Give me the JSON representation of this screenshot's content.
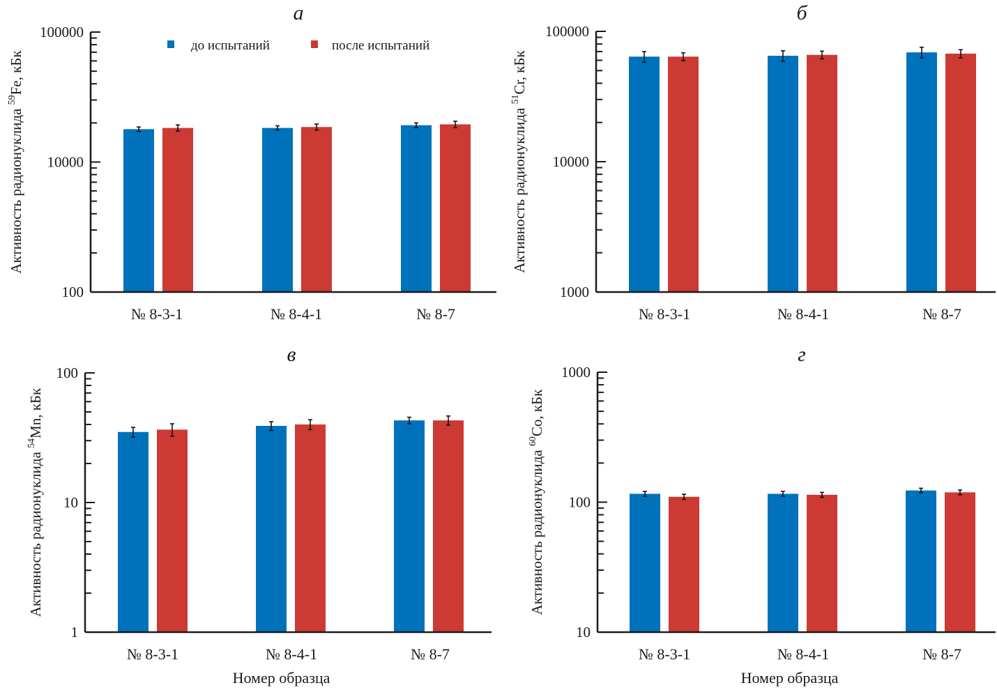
{
  "legend": {
    "items": [
      {
        "label": "до испытаний",
        "color": "#0072BC"
      },
      {
        "label": "после испытаний",
        "color": "#CC3A33"
      }
    ]
  },
  "colors": {
    "before": "#0072BC",
    "after": "#CC3A33",
    "axis": "#1a1a1a"
  },
  "chart_data": [
    {
      "id": "a",
      "type": "bar",
      "title": "а",
      "scale": "log",
      "ylabel_prefix": "Активность радионуклида ",
      "isotope_mass": "59",
      "isotope_symbol": "Fe",
      "ylabel_suffix": ", кБк",
      "xlabel": "",
      "categories": [
        "№ 8-3-1",
        "№ 8-4-1",
        "№ 8-7"
      ],
      "yticks": [
        "100",
        "10000",
        "100000"
      ],
      "ylim": [
        1000,
        100000
      ],
      "series": [
        {
          "name": "до испытаний",
          "values": [
            17900,
            18300,
            19200
          ],
          "errors": [
            700,
            700,
            800
          ]
        },
        {
          "name": "после испытаний",
          "values": [
            18300,
            18600,
            19500
          ],
          "errors": [
            1000,
            1000,
            1100
          ]
        }
      ],
      "legend_position": "top-center"
    },
    {
      "id": "b",
      "type": "bar",
      "title": "б",
      "scale": "log",
      "ylabel_prefix": "Активность радионуклида ",
      "isotope_mass": "51",
      "isotope_symbol": "Cr",
      "ylabel_suffix": ", кБк",
      "xlabel": "",
      "categories": [
        "№ 8-3-1",
        "№ 8-4-1",
        "№ 8-7"
      ],
      "yticks": [
        "1000",
        "10000",
        "100000"
      ],
      "ylim": [
        1000,
        100000
      ],
      "series": [
        {
          "name": "до испытаний",
          "values": [
            64000,
            65000,
            69000
          ],
          "errors": [
            6000,
            6000,
            6500
          ]
        },
        {
          "name": "после испытаний",
          "values": [
            64000,
            66000,
            67500
          ],
          "errors": [
            4500,
            4500,
            4800
          ]
        }
      ]
    },
    {
      "id": "v",
      "type": "bar",
      "title": "в",
      "scale": "log",
      "ylabel_prefix": "Активность радионуклида ",
      "isotope_mass": "54",
      "isotope_symbol": "Mn",
      "ylabel_suffix": ", кБк",
      "xlabel": "Номер образца",
      "categories": [
        "№ 8-3-1",
        "№ 8-4-1",
        "№ 8-7"
      ],
      "yticks": [
        "1",
        "10",
        "100"
      ],
      "ylim": [
        1,
        100
      ],
      "series": [
        {
          "name": "до испытаний",
          "values": [
            35,
            39,
            43
          ],
          "errors": [
            3,
            3,
            2.5
          ]
        },
        {
          "name": "после испытаний",
          "values": [
            36.5,
            40,
            43
          ],
          "errors": [
            4,
            3.5,
            3.5
          ]
        }
      ]
    },
    {
      "id": "g",
      "type": "bar",
      "title": "г",
      "scale": "log",
      "ylabel_prefix": "Активность радионуклида ",
      "isotope_mass": "60",
      "isotope_symbol": "Co",
      "ylabel_suffix": ", кБк",
      "xlabel": "Номер образца",
      "categories": [
        "№ 8-3-1",
        "№ 8-4-1",
        "№ 8-7"
      ],
      "yticks": [
        "10",
        "100",
        "1000"
      ],
      "ylim": [
        10,
        1000
      ],
      "series": [
        {
          "name": "до испытаний",
          "values": [
            116,
            116,
            123
          ],
          "errors": [
            5,
            5,
            5
          ]
        },
        {
          "name": "после испытаний",
          "values": [
            110,
            114,
            119
          ],
          "errors": [
            5,
            5,
            5
          ]
        }
      ]
    }
  ]
}
